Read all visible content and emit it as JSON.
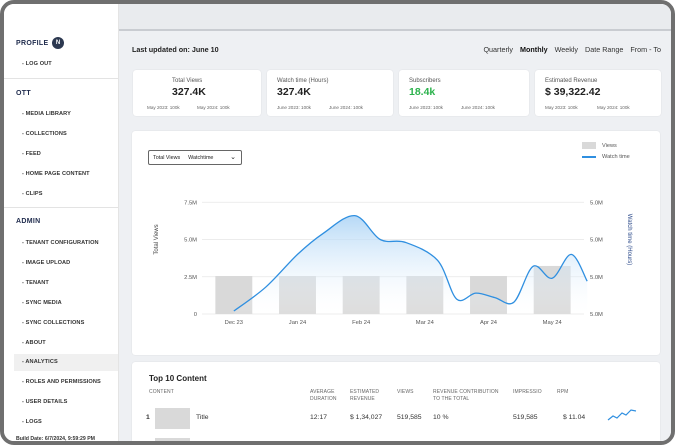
{
  "sidebar": {
    "profile_label": "PROFILE",
    "avatar_initial": "N",
    "logout": "- LOG OUT",
    "ott_label": "OTT",
    "ott_items": [
      "- MEDIA LIBRARY",
      "- COLLECTIONS",
      "- FEED",
      "- HOME PAGE CONTENT",
      "- CLIPS"
    ],
    "admin_label": "ADMIN",
    "admin_items": [
      "- TENANT CONFIGURATION",
      "- IMAGE UPLOAD",
      "- TENANT",
      "- SYNC MEDIA",
      "- SYNC COLLECTIONS",
      "- ABOUT",
      "- ANALYTICS",
      "- ROLES AND PERMISSIONS",
      "- USER DETAILS",
      "- LOGS"
    ],
    "active_item": "- ANALYTICS",
    "build_date": "Build Date: 6/7/2024, 9:59:29 PM"
  },
  "header": {
    "last_updated": "Last updated on: June 10",
    "periods": [
      "Quarterly",
      "Monthly",
      "Weekly",
      "Date Range",
      "From - To"
    ],
    "selected_period": "Monthly"
  },
  "kpis": [
    {
      "label": "Total Views",
      "value": "327.4K",
      "cmp1": "May 2023: 100k",
      "cmp2": "May 2024: 100k",
      "color": "#222222"
    },
    {
      "label": "Watch time (Hours)",
      "value": "327.4K",
      "cmp1": "June 2023: 100k",
      "cmp2": "June 2024: 100k",
      "color": "#222222"
    },
    {
      "label": "Subscribers",
      "value": "18.4k",
      "cmp1": "June 2023: 100k",
      "cmp2": "June 2024: 100k",
      "color": "#2bb24c"
    },
    {
      "label": "Estimated Revenue",
      "value": "$ 39,322.42",
      "cmp1": "May 2023: 100k",
      "cmp2": "May 2024: 100k",
      "color": "#222222"
    }
  ],
  "chart_select": {
    "option1": "Total Views",
    "option2": "Watchtime"
  },
  "chart_data": {
    "type": "bar",
    "categories": [
      "Dec 23",
      "Jan 24",
      "Feb 24",
      "Mar 24",
      "Apr 24",
      "May 24"
    ],
    "series": [
      {
        "name": "Views",
        "type": "bar",
        "axis": "left",
        "values": [
          3.4,
          3.4,
          3.4,
          3.4,
          3.4,
          4.3
        ]
      },
      {
        "name": "Watch time",
        "type": "line",
        "axis": "right",
        "x": [
          0,
          0.5,
          1,
          1.4,
          1.9,
          2.3,
          2.7,
          3.2,
          3.5,
          3.8,
          4.1,
          4.4,
          4.7,
          5.0,
          5.3,
          5.55
        ],
        "values": [
          5.1,
          5.9,
          7.0,
          7.7,
          8.3,
          7.5,
          7.4,
          6.8,
          5.5,
          5.7,
          5.55,
          5.4,
          6.6,
          6.2,
          7.0,
          6.1
        ]
      }
    ],
    "ylabel": "Total Views",
    "ylabel_right": "Watch time (Hours)",
    "yticks_left": [
      "0",
      "2.5M",
      "5.0M",
      "7.5M"
    ],
    "yticks_right": [
      "5.0M",
      "5.0M",
      "5.0M",
      "5.0M"
    ],
    "ylim": [
      0,
      10
    ],
    "ylim_right": [
      5,
      10
    ],
    "legend": "top-right",
    "colors": {
      "bar": "#d9d9d9",
      "line": "#2f8fe0",
      "area": "#cfe6fa"
    }
  },
  "table": {
    "title": "Top 10 Content",
    "headers": [
      "CONTENT",
      "AVERAGE\nDURATION",
      "ESTIMATED\nREVENUE",
      "VIEWS",
      "REVENUE CONTRIBUTION\nTO THE TOTAL",
      "IMPRESSIO",
      "RPM"
    ],
    "rows": [
      {
        "rank": "1",
        "title": "Title",
        "duration": "12:17",
        "revenue": "$ 1,34,027",
        "views": "519,585",
        "contribution": "10 %",
        "impressions": "519,585",
        "rpm": "$ 11.04"
      }
    ]
  }
}
